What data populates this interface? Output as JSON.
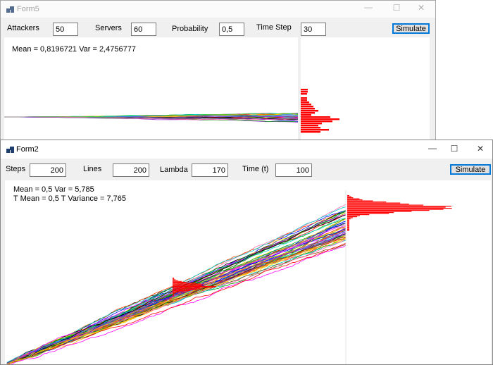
{
  "form5": {
    "title": "Form5",
    "labels": {
      "attackers": "Attackers",
      "servers": "Servers",
      "probability": "Probability",
      "time_step": "Time Step"
    },
    "values": {
      "attackers": "50",
      "servers": "60",
      "probability": "0,5",
      "time_step": "30"
    },
    "simulate_label": "Simulate",
    "stats": "Mean = 0,8196721 Var = 2,4756777",
    "histogram_color": "#ff0000"
  },
  "form2": {
    "title": "Form2",
    "labels": {
      "steps": "Steps",
      "lines": "Lines",
      "lambda": "Lambda",
      "time": "Time (t)"
    },
    "values": {
      "steps": "200",
      "lines": "200",
      "lambda": "170",
      "time": "100"
    },
    "simulate_label": "Simulate",
    "stats": {
      "line1": "Mean = 0,5 Var = 5,785",
      "line2": "T Mean = 0,5 T Variance = 7,765"
    },
    "histogram_color": "#ff0000"
  }
}
